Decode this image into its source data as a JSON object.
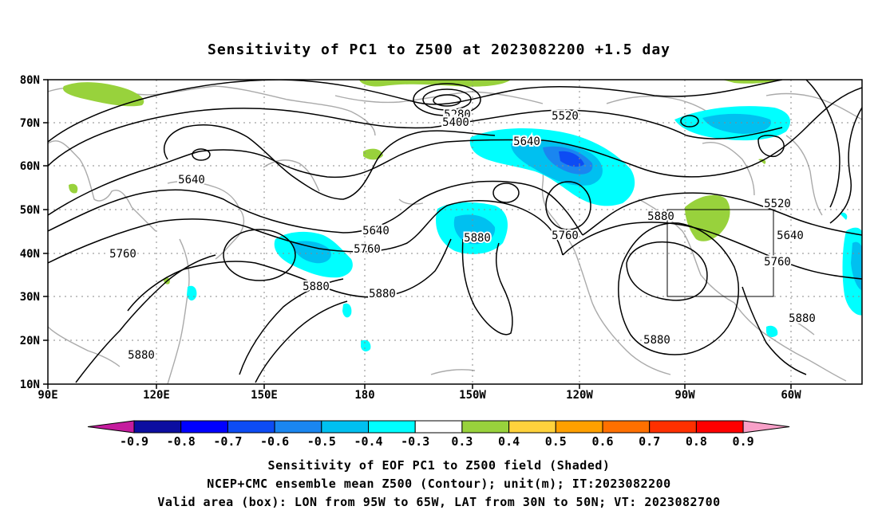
{
  "title": "Sensitivity of PC1 to Z500 at 2023082200 +1.5 day",
  "lat_labels": [
    "80N",
    "70N",
    "60N",
    "50N",
    "40N",
    "30N",
    "20N",
    "10N"
  ],
  "lon_labels": [
    "90E",
    "120E",
    "150E",
    "180",
    "150W",
    "120W",
    "90W",
    "60W"
  ],
  "contour_labels": [
    "5280",
    "5400",
    "5520",
    "5640",
    "5640",
    "5640",
    "5760",
    "5760",
    "5880",
    "5880",
    "5880",
    "5520",
    "5640",
    "5760",
    "5880",
    "5880",
    "5880",
    "5760",
    "5880"
  ],
  "colorbar": {
    "tick_labels": [
      "-0.9",
      "-0.8",
      "-0.7",
      "-0.6",
      "-0.5",
      "-0.4",
      "-0.3",
      "0.3",
      "0.4",
      "0.5",
      "0.6",
      "0.7",
      "0.8",
      "0.9"
    ],
    "colors": [
      "#c51c9e",
      "#0c0ea0",
      "#0000ff",
      "#0d4cf4",
      "#1a86f0",
      "#00c0f0",
      "#00ffff",
      "#ffffff",
      "#98d23c",
      "#ffd23c",
      "#ffa000",
      "#ff7000",
      "#ff3000",
      "#ff0000",
      "#f8a0c8"
    ]
  },
  "notes": [
    "Sensitivity of EOF PC1 to Z500 field (Shaded)",
    "NCEP+CMC ensemble mean Z500 (Contour); unit(m); IT:2023082200",
    "Valid area (box): LON from 95W to 65W, LAT from 30N to 50N; VT: 2023082700"
  ]
}
